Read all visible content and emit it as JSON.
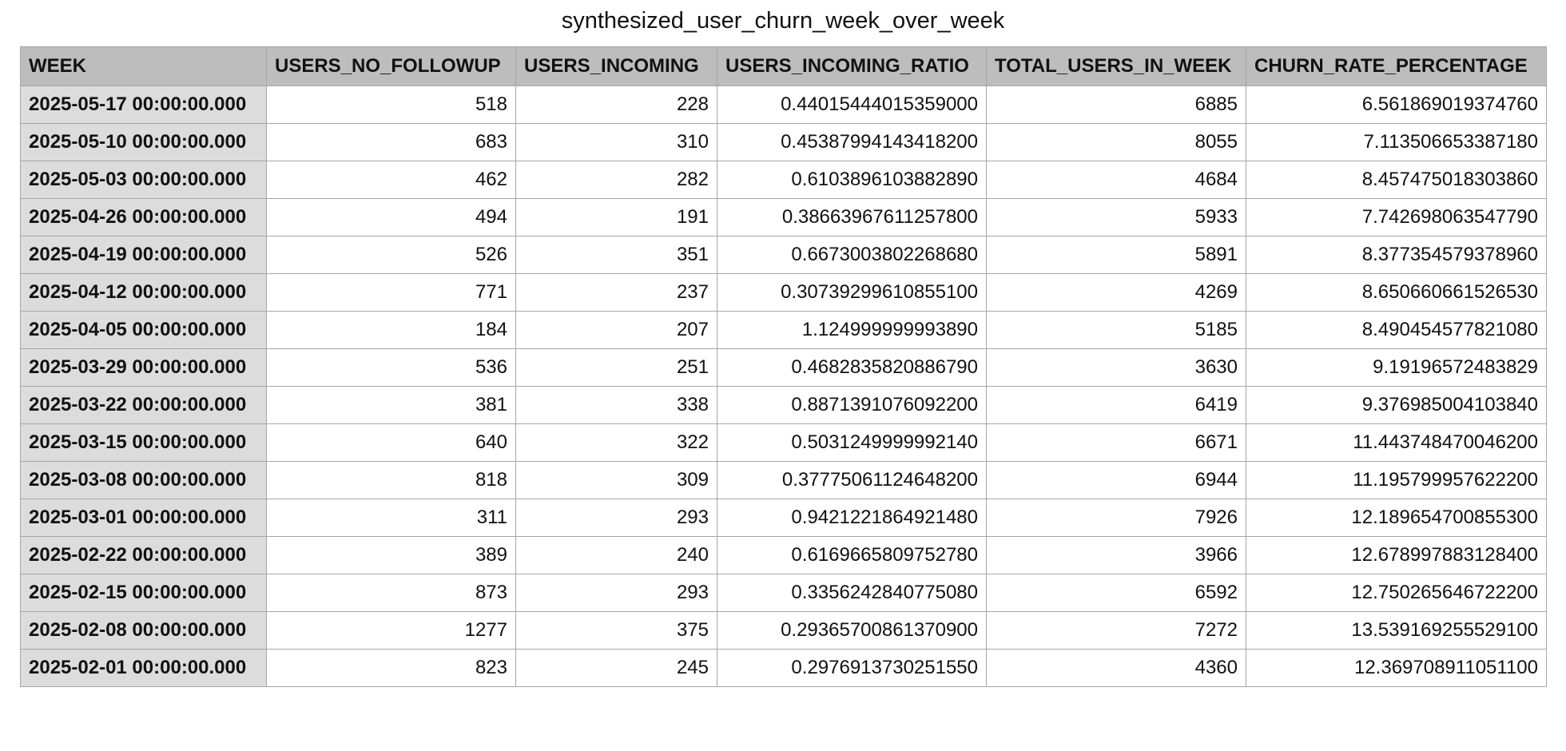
{
  "title": "synthesized_user_churn_week_over_week",
  "chart_data": {
    "type": "table",
    "title": "synthesized_user_churn_week_over_week",
    "columns": [
      "WEEK",
      "USERS_NO_FOLLOWUP",
      "USERS_INCOMING",
      "USERS_INCOMING_RATIO",
      "TOTAL_USERS_IN_WEEK",
      "CHURN_RATE_PERCENTAGE"
    ],
    "rows": [
      [
        "2025-05-17 00:00:00.000",
        "518",
        "228",
        "0.44015444015359000",
        "6885",
        "6.561869019374760"
      ],
      [
        "2025-05-10 00:00:00.000",
        "683",
        "310",
        "0.45387994143418200",
        "8055",
        "7.113506653387180"
      ],
      [
        "2025-05-03 00:00:00.000",
        "462",
        "282",
        "0.6103896103882890",
        "4684",
        "8.457475018303860"
      ],
      [
        "2025-04-26 00:00:00.000",
        "494",
        "191",
        "0.38663967611257800",
        "5933",
        "7.742698063547790"
      ],
      [
        "2025-04-19 00:00:00.000",
        "526",
        "351",
        "0.6673003802268680",
        "5891",
        "8.377354579378960"
      ],
      [
        "2025-04-12 00:00:00.000",
        "771",
        "237",
        "0.30739299610855100",
        "4269",
        "8.650660661526530"
      ],
      [
        "2025-04-05 00:00:00.000",
        "184",
        "207",
        "1.124999999993890",
        "5185",
        "8.490454577821080"
      ],
      [
        "2025-03-29 00:00:00.000",
        "536",
        "251",
        "0.4682835820886790",
        "3630",
        "9.19196572483829"
      ],
      [
        "2025-03-22 00:00:00.000",
        "381",
        "338",
        "0.8871391076092200",
        "6419",
        "9.376985004103840"
      ],
      [
        "2025-03-15 00:00:00.000",
        "640",
        "322",
        "0.5031249999992140",
        "6671",
        "11.443748470046200"
      ],
      [
        "2025-03-08 00:00:00.000",
        "818",
        "309",
        "0.37775061124648200",
        "6944",
        "11.195799957622200"
      ],
      [
        "2025-03-01 00:00:00.000",
        "311",
        "293",
        "0.9421221864921480",
        "7926",
        "12.189654700855300"
      ],
      [
        "2025-02-22 00:00:00.000",
        "389",
        "240",
        "0.6169665809752780",
        "3966",
        "12.678997883128400"
      ],
      [
        "2025-02-15 00:00:00.000",
        "873",
        "293",
        "0.3356242840775080",
        "6592",
        "12.750265646722200"
      ],
      [
        "2025-02-08 00:00:00.000",
        "1277",
        "375",
        "0.29365700861370900",
        "7272",
        "13.539169255529100"
      ],
      [
        "2025-02-01 00:00:00.000",
        "823",
        "245",
        "0.2976913730251550",
        "4360",
        "12.369708911051100"
      ]
    ]
  }
}
